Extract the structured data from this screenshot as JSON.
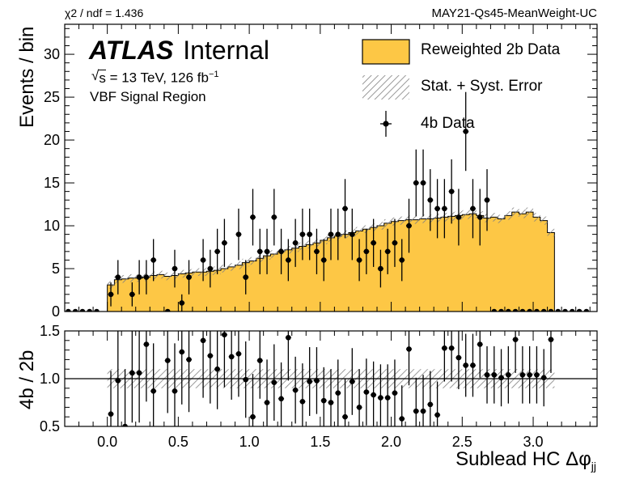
{
  "header": {
    "chi2": "χ2 / ndf = 1.436",
    "tag": "MAY21-Qs45-MeanWeight-UC"
  },
  "labels": {
    "atlas": "ATLAS",
    "internal": "Internal",
    "sqrt_s": "s",
    "energy": " = 13 TeV, 126 fb",
    "energy_exp": "−1",
    "region": "VBF Signal Region"
  },
  "legend": {
    "bkg": "Reweighted 2b Data",
    "err": "Stat. + Syst. Error",
    "data": "4b Data"
  },
  "colors": {
    "fill": "#fdc745",
    "line": "#000000",
    "hatch": "#808080"
  },
  "chart_data": {
    "type": "histogram",
    "xlabel_main": "Sublead HC Δφ",
    "xlabel_sub": "jj",
    "xlim": [
      -0.3,
      3.45
    ],
    "bin_width": 0.05,
    "x_ticks": [
      "0.0",
      "0.5",
      "1.0",
      "1.5",
      "2.0",
      "2.5",
      "3.0"
    ],
    "top": {
      "ylabel": "Events / bin",
      "ylim": [
        0,
        33.5
      ],
      "y_ticks": [
        "0",
        "5",
        "10",
        "15",
        "20",
        "25",
        "30"
      ]
    },
    "ratio": {
      "ylabel": "4b / 2b",
      "ylim": [
        0.5,
        1.5
      ],
      "y_ticks": [
        "0.5",
        "1.0",
        "1.5"
      ],
      "reference": 1.0,
      "band": 0.1
    },
    "bins_low": [
      0.0,
      0.05,
      0.1,
      0.15,
      0.2,
      0.25,
      0.3,
      0.35,
      0.4,
      0.45,
      0.5,
      0.55,
      0.6,
      0.65,
      0.7,
      0.75,
      0.8,
      0.85,
      0.9,
      0.95,
      1.0,
      1.05,
      1.1,
      1.15,
      1.2,
      1.25,
      1.3,
      1.35,
      1.4,
      1.45,
      1.5,
      1.55,
      1.6,
      1.65,
      1.7,
      1.75,
      1.8,
      1.85,
      1.9,
      1.95,
      2.0,
      2.05,
      2.1,
      2.15,
      2.2,
      2.25,
      2.3,
      2.35,
      2.4,
      2.45,
      2.5,
      2.55,
      2.6,
      2.65,
      2.7,
      2.75,
      2.8,
      2.85,
      2.9,
      2.95,
      3.0,
      3.05,
      3.1
    ],
    "bkg": [
      3.1,
      3.7,
      3.8,
      3.9,
      3.9,
      4.0,
      4.2,
      4.3,
      4.1,
      4.2,
      4.4,
      4.5,
      4.6,
      4.6,
      4.7,
      4.8,
      5.0,
      5.2,
      5.4,
      5.7,
      5.9,
      6.2,
      6.5,
      6.7,
      7.0,
      7.2,
      7.4,
      7.6,
      7.8,
      8.0,
      8.3,
      8.6,
      8.8,
      9.0,
      9.2,
      9.4,
      9.6,
      9.8,
      10.0,
      10.3,
      10.5,
      10.6,
      10.7,
      10.7,
      10.8,
      10.8,
      10.9,
      11.0,
      11.1,
      11.2,
      11.3,
      11.4,
      11.2,
      10.9,
      11.0,
      10.8,
      11.2,
      11.6,
      11.4,
      11.6,
      11.0,
      10.6,
      9.2
    ],
    "data_x": [
      0.025,
      0.075,
      0.175,
      0.225,
      0.275,
      0.325,
      0.425,
      0.475,
      0.525,
      0.575,
      0.675,
      0.725,
      0.775,
      0.825,
      0.925,
      0.975,
      1.025,
      1.075,
      1.125,
      1.175,
      1.225,
      1.275,
      1.325,
      1.375,
      1.425,
      1.475,
      1.525,
      1.575,
      1.625,
      1.675,
      1.725,
      1.775,
      1.825,
      1.875,
      1.925,
      1.975,
      2.025,
      2.075,
      2.125,
      2.175,
      2.225,
      2.275,
      2.325,
      2.375,
      2.425,
      2.475,
      2.525,
      2.575,
      2.625,
      2.675,
      2.725,
      2.775,
      2.825,
      2.875,
      2.925,
      2.975,
      3.025,
      3.075,
      3.125
    ],
    "data_y": [
      2,
      4,
      2,
      4,
      4,
      6,
      0,
      5,
      1,
      4,
      6,
      5,
      7,
      8,
      9,
      4,
      11,
      7,
      7,
      11,
      7,
      6,
      8,
      9,
      9,
      7,
      6,
      9,
      9,
      12,
      9,
      6,
      7,
      8,
      5,
      7,
      8,
      6,
      10,
      15,
      15,
      13,
      12,
      12,
      14,
      11,
      21,
      12,
      11,
      13,
      0,
      0,
      0,
      0,
      0,
      0,
      0,
      0,
      0
    ],
    "data_err": [
      1.4,
      2.0,
      1.4,
      2.0,
      2.0,
      2.45,
      0,
      2.2,
      1.0,
      2.0,
      2.45,
      2.2,
      2.65,
      2.8,
      3.0,
      2.0,
      3.3,
      2.65,
      2.65,
      3.3,
      2.65,
      2.45,
      2.8,
      3.0,
      3.0,
      2.65,
      2.45,
      3.0,
      3.0,
      3.45,
      3.0,
      2.45,
      2.65,
      2.8,
      2.2,
      2.65,
      2.8,
      2.45,
      3.15,
      3.9,
      3.9,
      3.6,
      3.45,
      3.45,
      3.75,
      3.3,
      4.6,
      3.45,
      3.3,
      3.6,
      0,
      0,
      0,
      0,
      0,
      0,
      0,
      0,
      0
    ],
    "ratio_x": [
      0.025,
      0.075,
      0.125,
      0.175,
      0.225,
      0.275,
      0.325,
      0.425,
      0.475,
      0.525,
      0.575,
      0.675,
      0.725,
      0.775,
      0.825,
      0.875,
      0.925,
      0.975,
      1.025,
      1.075,
      1.125,
      1.175,
      1.225,
      1.275,
      1.325,
      1.375,
      1.425,
      1.475,
      1.525,
      1.575,
      1.625,
      1.675,
      1.725,
      1.775,
      1.825,
      1.875,
      1.925,
      1.975,
      2.025,
      2.075,
      2.125,
      2.175,
      2.225,
      2.275,
      2.325,
      2.375,
      2.425,
      2.475,
      2.525,
      2.575,
      2.625,
      2.675,
      2.725,
      2.775,
      2.825,
      2.875,
      2.925,
      2.975,
      3.025,
      3.075,
      3.125
    ],
    "ratio_y": [
      0.63,
      0.98,
      0.5,
      1.06,
      1.06,
      1.36,
      0.87,
      1.19,
      0.87,
      1.28,
      1.2,
      1.4,
      1.24,
      1.1,
      1.46,
      1.23,
      1.26,
      0.99,
      0.6,
      1.19,
      0.75,
      0.96,
      0.79,
      1.43,
      0.88,
      0.76,
      0.97,
      0.98,
      0.77,
      0.75,
      0.85,
      0.6,
      0.97,
      0.7,
      0.86,
      0.83,
      0.8,
      0.8,
      0.85,
      0.58,
      1.31,
      0.66,
      0.66,
      0.73,
      0.62,
      1.32,
      1.32,
      1.22,
      1.14,
      1.14,
      1.36,
      1.04,
      1.04,
      1.01,
      1.04,
      1.41,
      1.04,
      1.04,
      1.04,
      1.01,
      1.41
    ],
    "ratio_err": [
      0.45,
      0.55,
      0.6,
      0.52,
      0.52,
      0.6,
      0.5,
      0.55,
      0.5,
      0.55,
      0.55,
      0.6,
      0.5,
      0.42,
      0.55,
      0.45,
      0.45,
      0.4,
      0.45,
      0.4,
      0.45,
      0.4,
      0.38,
      0.45,
      0.35,
      0.4,
      0.36,
      0.35,
      0.35,
      0.35,
      0.35,
      0.4,
      0.35,
      0.4,
      0.35,
      0.35,
      0.35,
      0.35,
      0.35,
      0.35,
      0.38,
      0.35,
      0.38,
      0.35,
      0.35,
      0.35,
      0.35,
      0.33,
      0.33,
      0.33,
      0.35,
      0.3,
      0.3,
      0.3,
      0.3,
      0.35,
      0.3,
      0.3,
      0.3,
      0.3,
      0.35
    ]
  }
}
